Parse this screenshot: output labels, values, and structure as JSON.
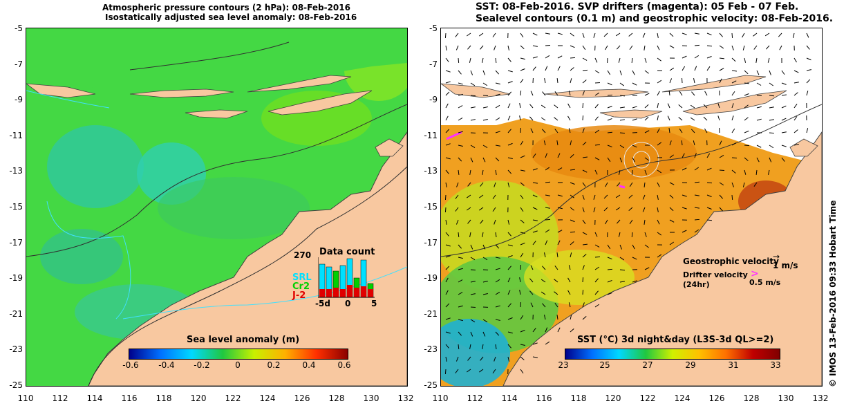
{
  "left_panel": {
    "title_line1": "Atmospheric pressure contours (2 hPa): 08-Feb-2016",
    "title_line2": "Isostatically adjusted sea level anomaly: 08-Feb-2016",
    "colorbar_title": "Sea level anomaly (m)",
    "colorbar_ticks": [
      "-0.6",
      "-0.4",
      "-0.2",
      "0",
      "0.2",
      "0.4",
      "0.6"
    ],
    "colorbar_colors": [
      "#00008b",
      "#0070ff",
      "#00d8ff",
      "#20c840",
      "#c8f000",
      "#ffb000",
      "#ff3000",
      "#8b0000"
    ],
    "data_count": {
      "title": "Data count",
      "ymax_label": "270",
      "series_labels": [
        "SRL",
        "Cr2",
        "J-2"
      ],
      "series_colors": [
        "#00e0ff",
        "#00d000",
        "#e00000"
      ],
      "x_ticks": [
        "-5d",
        "0",
        "5"
      ]
    }
  },
  "right_panel": {
    "title_line1": "SST: 08-Feb-2016. SVP drifters (magenta): 05 Feb - 07 Feb.",
    "title_line2": "Sealevel contours (0.1 m) and geostrophic velocity: 08-Feb-2016.",
    "colorbar_title": "SST (°C) 3d night&day (L3S-3d QL>=2)",
    "colorbar_ticks": [
      "23",
      "25",
      "27",
      "29",
      "31",
      "33"
    ],
    "colorbar_colors": [
      "#00008b",
      "#0070ff",
      "#00d8ff",
      "#20c840",
      "#d0f000",
      "#ffc000",
      "#ff7000",
      "#c00000",
      "#800000"
    ],
    "geostrophic_label": "Geostrophic velocity",
    "geostrophic_scale": "1 m/s",
    "drifter_label_1": "Drifter velocity",
    "drifter_label_2": "(24hr)",
    "drifter_scale": "0.5 m/s"
  },
  "axes": {
    "lat_ticks": [
      "-5",
      "-7",
      "-9",
      "-11",
      "-13",
      "-15",
      "-17",
      "-19",
      "-21",
      "-23",
      "-25"
    ],
    "lon_ticks": [
      "110",
      "112",
      "114",
      "116",
      "118",
      "120",
      "122",
      "124",
      "126",
      "128",
      "130",
      "132"
    ]
  },
  "credit": "© IMOS 13-Feb-2016 09:33 Hobart Time",
  "colors": {
    "land": "#f8c8a0",
    "sla_background": "#40d040",
    "sst_background": "#f0a020"
  }
}
